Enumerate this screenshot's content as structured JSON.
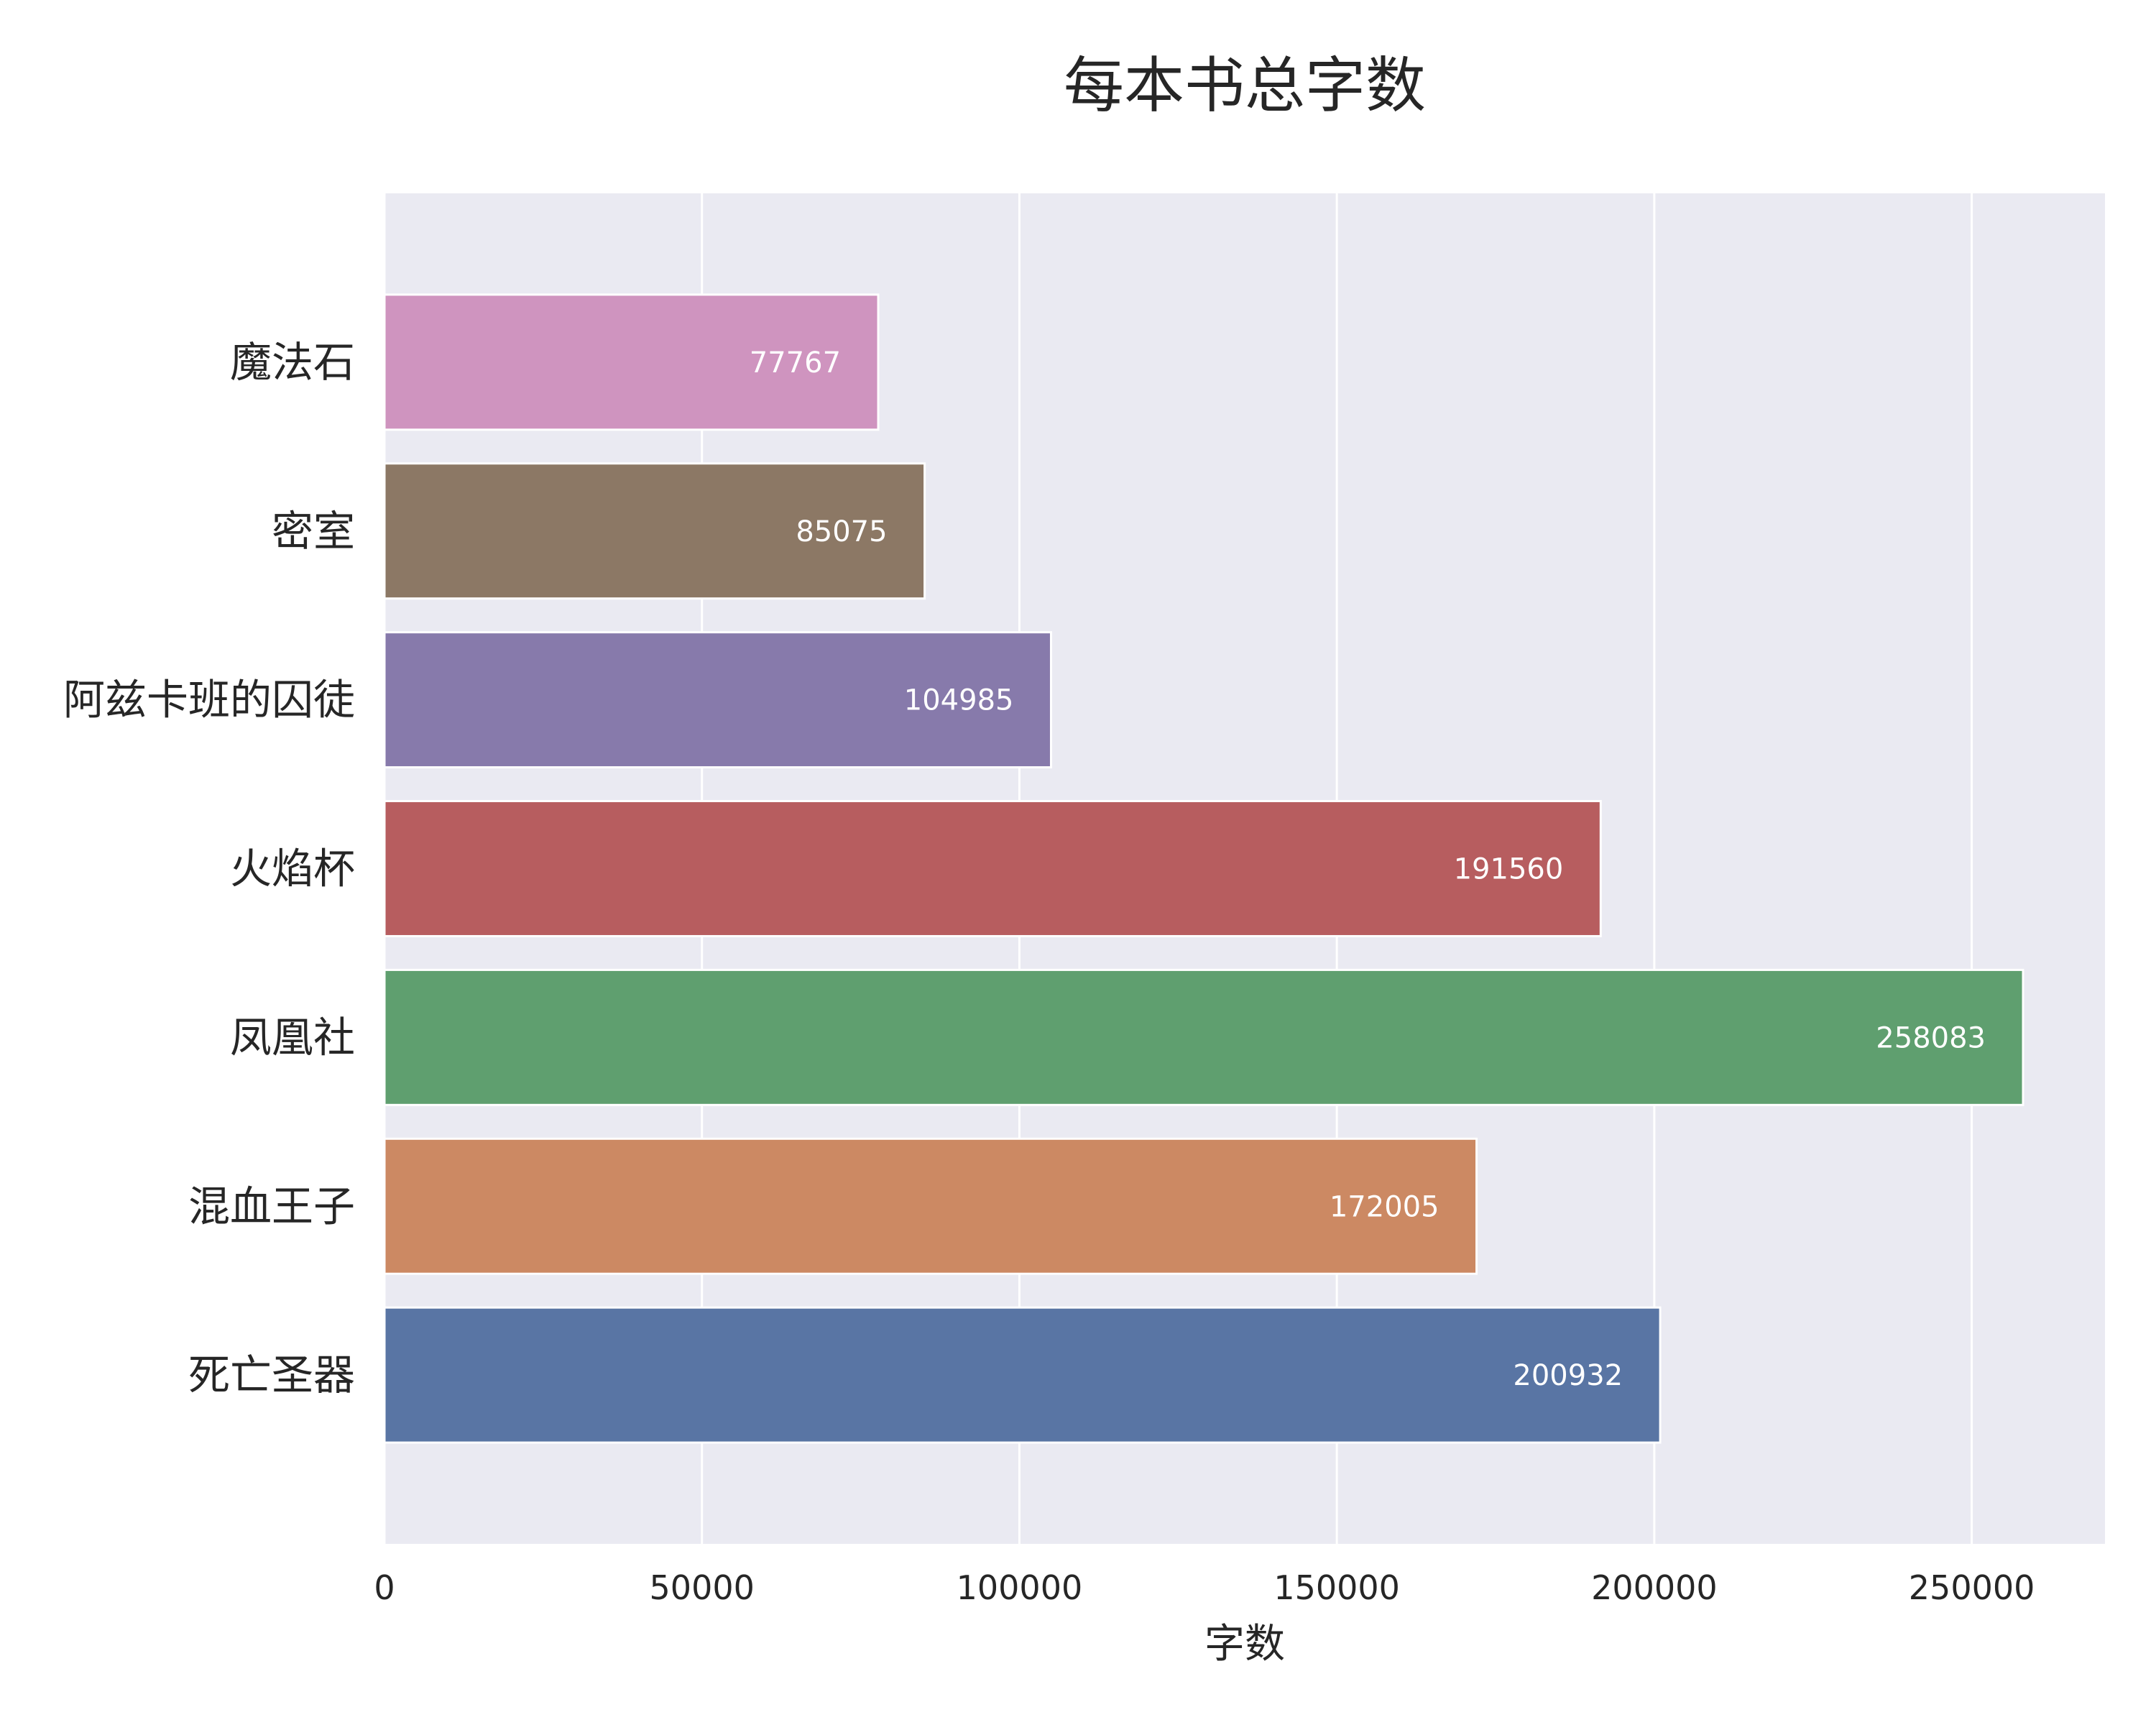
{
  "chart_data": {
    "type": "bar",
    "orientation": "horizontal",
    "title": "每本书总字数",
    "xlabel": "字数",
    "ylabel": "",
    "categories": [
      "魔法石",
      "密室",
      "阿兹卡班的囚徒",
      "火焰杯",
      "凤凰社",
      "混血王子",
      "死亡圣器"
    ],
    "values": [
      77767,
      85075,
      104985,
      191560,
      258083,
      172005,
      200932
    ],
    "value_labels": [
      "77767",
      "85075",
      "104985",
      "191560",
      "258083",
      "172005",
      "200932"
    ],
    "colors": [
      "#CF94BF",
      "#8C7865",
      "#877AAB",
      "#B75D5F",
      "#5F9F6F",
      "#CC8963",
      "#5975A4"
    ],
    "xlim": [
      0,
      270987
    ],
    "xticks": [
      0,
      50000,
      100000,
      150000,
      200000,
      250000
    ],
    "xtick_labels": [
      "0",
      "50000",
      "100000",
      "150000",
      "200000",
      "250000"
    ],
    "grid": true,
    "background": "#EAEAF2",
    "grid_color": "#FFFFFF"
  }
}
